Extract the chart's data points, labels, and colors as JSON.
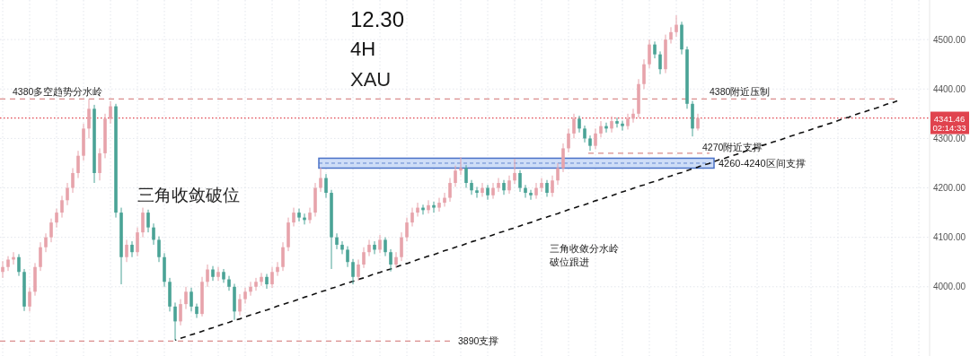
{
  "chart_data": {
    "type": "candlestick",
    "title": "12.30",
    "subtitle": "4H",
    "annotations": [
      "XAU",
      "三角收敛破位",
      "三角收敛分水岭",
      "破位跟进",
      {
        "text": "4380附近压制",
        "y": 4380
      },
      "02:14:33"
    ],
    "ylim": [
      3860,
      4580
    ],
    "yticks": [
      {
        "value": 4000,
        "label": "4000.00"
      },
      {
        "value": 4100,
        "label": "4100.00"
      },
      {
        "value": 4200,
        "label": "4200.00"
      },
      {
        "value": 4300,
        "label": "4300.00"
      },
      {
        "value": 4400,
        "label": "4400.00"
      },
      {
        "value": 4500,
        "label": "4500.00"
      }
    ],
    "tick_labels": "y",
    "grid": true,
    "categories": [
      null,
      null,
      null,
      null,
      null,
      null,
      null,
      null,
      null,
      null,
      null,
      null,
      null,
      null,
      null,
      null,
      null,
      null,
      null,
      null,
      null,
      null,
      null,
      null,
      null,
      null,
      null,
      null,
      null,
      null,
      null,
      null,
      null,
      null,
      null,
      null,
      null,
      null,
      null,
      null,
      null,
      null,
      null,
      null,
      null,
      null,
      null,
      null,
      null,
      null,
      null,
      null,
      null,
      null,
      null,
      null,
      null,
      null,
      null,
      null,
      null,
      null,
      null,
      null,
      null,
      null,
      null,
      null,
      null,
      null,
      null,
      null,
      null,
      null,
      null,
      null,
      null,
      null,
      null,
      null,
      null,
      null,
      null,
      null,
      null,
      null,
      null,
      null,
      null,
      null,
      null,
      null,
      null,
      null,
      null,
      null,
      null,
      null,
      null,
      null,
      null,
      null,
      null,
      null,
      null,
      null,
      null,
      null,
      null,
      null,
      null,
      null,
      null,
      null,
      null,
      null,
      null,
      null,
      null,
      null,
      null,
      null,
      null,
      null,
      null,
      null,
      null,
      null,
      null,
      null,
      null,
      null,
      null,
      null,
      null,
      null,
      null,
      null,
      null,
      null,
      null,
      null,
      null,
      null,
      null,
      null,
      null,
      null,
      null,
      null,
      null,
      null,
      null,
      null,
      null,
      null,
      null,
      null,
      null,
      null,
      null,
      null,
      null,
      null,
      null,
      null,
      null,
      null,
      null,
      null,
      null,
      null
    ],
    "ohlc": [
      [
        4030,
        4052,
        4018,
        4040
      ],
      [
        4040,
        4062,
        4032,
        4055
      ],
      [
        4055,
        4070,
        4045,
        4060
      ],
      [
        4060,
        4066,
        4022,
        4030
      ],
      [
        4030,
        4036,
        3951,
        3960
      ],
      [
        3960,
        3998,
        3950,
        3990
      ],
      [
        3990,
        4048,
        3982,
        4040
      ],
      [
        4040,
        4090,
        4032,
        4080
      ],
      [
        4080,
        4108,
        4070,
        4100
      ],
      [
        4100,
        4138,
        4090,
        4130
      ],
      [
        4130,
        4158,
        4120,
        4150
      ],
      [
        4150,
        4184,
        4140,
        4175
      ],
      [
        4175,
        4210,
        4165,
        4200
      ],
      [
        4200,
        4240,
        4190,
        4230
      ],
      [
        4230,
        4275,
        4220,
        4265
      ],
      [
        4265,
        4330,
        4255,
        4320
      ],
      [
        4320,
        4380,
        4300,
        4360
      ],
      [
        4360,
        4368,
        4210,
        4230
      ],
      [
        4230,
        4280,
        4215,
        4270
      ],
      [
        4270,
        4350,
        4260,
        4340
      ],
      [
        4340,
        4375,
        4330,
        4365
      ],
      [
        4365,
        4370,
        4140,
        4150
      ],
      [
        4150,
        4160,
        4005,
        4060
      ],
      [
        4060,
        4095,
        4050,
        4085
      ],
      [
        4085,
        4092,
        4060,
        4070
      ],
      [
        4070,
        4120,
        4062,
        4110
      ],
      [
        4110,
        4160,
        4100,
        4150
      ],
      [
        4150,
        4156,
        4110,
        4120
      ],
      [
        4120,
        4128,
        4085,
        4095
      ],
      [
        4095,
        4102,
        4050,
        4060
      ],
      [
        4060,
        4068,
        4000,
        4010
      ],
      [
        4010,
        4018,
        3950,
        3960
      ],
      [
        3960,
        3968,
        3892,
        3930
      ],
      [
        3930,
        3975,
        3922,
        3965
      ],
      [
        3965,
        4000,
        3955,
        3990
      ],
      [
        3990,
        3998,
        3950,
        3960
      ],
      [
        3960,
        3966,
        3937,
        3945
      ],
      [
        3945,
        4020,
        3940,
        4010
      ],
      [
        4010,
        4045,
        4000,
        4035
      ],
      [
        4035,
        4042,
        4012,
        4020
      ],
      [
        4020,
        4040,
        4012,
        4030
      ],
      [
        4030,
        4036,
        4008,
        4015
      ],
      [
        4015,
        4022,
        3992,
        4000
      ],
      [
        4000,
        4006,
        3933,
        3950
      ],
      [
        3950,
        3985,
        3942,
        3975
      ],
      [
        3975,
        3998,
        3966,
        3990
      ],
      [
        3990,
        4010,
        3982,
        4000
      ],
      [
        4000,
        4018,
        3992,
        4010
      ],
      [
        4010,
        4028,
        4002,
        4020
      ],
      [
        4020,
        4026,
        3996,
        4005
      ],
      [
        4005,
        4040,
        3998,
        4030
      ],
      [
        4030,
        4050,
        4022,
        4040
      ],
      [
        4040,
        4090,
        4032,
        4080
      ],
      [
        4080,
        4140,
        4072,
        4130
      ],
      [
        4130,
        4160,
        4122,
        4150
      ],
      [
        4150,
        4158,
        4132,
        4140
      ],
      [
        4140,
        4148,
        4126,
        4135
      ],
      [
        4135,
        4160,
        4128,
        4150
      ],
      [
        4150,
        4210,
        4142,
        4200
      ],
      [
        4200,
        4241,
        4192,
        4220
      ],
      [
        4220,
        4228,
        4180,
        4190
      ],
      [
        4190,
        4196,
        4036,
        4100
      ],
      [
        4100,
        4108,
        4076,
        4085
      ],
      [
        4085,
        4092,
        4066,
        4075
      ],
      [
        4075,
        4082,
        4040,
        4050
      ],
      [
        4050,
        4056,
        4005,
        4020
      ],
      [
        4020,
        4055,
        4012,
        4045
      ],
      [
        4045,
        4080,
        4038,
        4070
      ],
      [
        4070,
        4095,
        4062,
        4085
      ],
      [
        4085,
        4092,
        4066,
        4075
      ],
      [
        4075,
        4105,
        4068,
        4095
      ],
      [
        4095,
        4100,
        4062,
        4070
      ],
      [
        4070,
        4076,
        4031,
        4045
      ],
      [
        4045,
        4070,
        4038,
        4060
      ],
      [
        4060,
        4110,
        4052,
        4100
      ],
      [
        4100,
        4140,
        4092,
        4130
      ],
      [
        4130,
        4160,
        4122,
        4150
      ],
      [
        4150,
        4170,
        4142,
        4160
      ],
      [
        4160,
        4166,
        4146,
        4155
      ],
      [
        4155,
        4175,
        4148,
        4165
      ],
      [
        4165,
        4172,
        4150,
        4160
      ],
      [
        4160,
        4180,
        4152,
        4170
      ],
      [
        4170,
        4190,
        4162,
        4180
      ],
      [
        4180,
        4220,
        4172,
        4210
      ],
      [
        4210,
        4245,
        4202,
        4235
      ],
      [
        4235,
        4262,
        4226,
        4240
      ],
      [
        4240,
        4246,
        4200,
        4210
      ],
      [
        4210,
        4216,
        4186,
        4195
      ],
      [
        4195,
        4202,
        4180,
        4190
      ],
      [
        4190,
        4210,
        4182,
        4200
      ],
      [
        4200,
        4206,
        4176,
        4185
      ],
      [
        4185,
        4210,
        4178,
        4200
      ],
      [
        4200,
        4220,
        4192,
        4210
      ],
      [
        4210,
        4216,
        4186,
        4195
      ],
      [
        4195,
        4225,
        4188,
        4215
      ],
      [
        4215,
        4259,
        4208,
        4230
      ],
      [
        4230,
        4236,
        4192,
        4200
      ],
      [
        4200,
        4206,
        4180,
        4190
      ],
      [
        4190,
        4196,
        4176,
        4185
      ],
      [
        4185,
        4210,
        4178,
        4200
      ],
      [
        4200,
        4220,
        4192,
        4210
      ],
      [
        4210,
        4216,
        4182,
        4190
      ],
      [
        4190,
        4225,
        4182,
        4215
      ],
      [
        4215,
        4250,
        4206,
        4240
      ],
      [
        4240,
        4290,
        4232,
        4280
      ],
      [
        4280,
        4320,
        4272,
        4310
      ],
      [
        4310,
        4350,
        4300,
        4340
      ],
      [
        4340,
        4346,
        4312,
        4320
      ],
      [
        4320,
        4326,
        4292,
        4300
      ],
      [
        4300,
        4306,
        4275,
        4285
      ],
      [
        4285,
        4320,
        4278,
        4310
      ],
      [
        4310,
        4335,
        4302,
        4325
      ],
      [
        4325,
        4332,
        4312,
        4320
      ],
      [
        4320,
        4345,
        4312,
        4335
      ],
      [
        4335,
        4342,
        4322,
        4330
      ],
      [
        4330,
        4336,
        4316,
        4325
      ],
      [
        4325,
        4350,
        4318,
        4340
      ],
      [
        4340,
        4360,
        4332,
        4350
      ],
      [
        4350,
        4420,
        4342,
        4410
      ],
      [
        4410,
        4460,
        4400,
        4450
      ],
      [
        4450,
        4500,
        4442,
        4490
      ],
      [
        4490,
        4496,
        4462,
        4470
      ],
      [
        4470,
        4476,
        4430,
        4440
      ],
      [
        4440,
        4510,
        4432,
        4500
      ],
      [
        4500,
        4525,
        4492,
        4515
      ],
      [
        4515,
        4549,
        4506,
        4530
      ],
      [
        4530,
        4536,
        4470,
        4480
      ],
      [
        4480,
        4486,
        4360,
        4370
      ],
      [
        4370,
        4376,
        4304,
        4320
      ],
      [
        4320,
        4350,
        4316,
        4341.46
      ],
      null,
      null,
      null,
      null,
      null,
      null,
      null,
      null,
      null,
      null,
      null,
      null,
      null,
      null,
      null,
      null,
      null,
      null,
      null,
      null,
      null,
      null,
      null,
      null,
      null,
      null,
      null,
      null,
      null,
      null,
      null,
      null,
      null,
      null,
      null,
      null,
      null,
      null,
      null,
      null,
      null,
      null
    ],
    "colors": [
      "#e7a3ab",
      "#e7a3ab",
      "#e7a3ab",
      "#4aa396",
      "#4aa396",
      "#e7a3ab",
      "#e7a3ab",
      "#e7a3ab",
      "#e7a3ab",
      "#e7a3ab",
      "#e7a3ab",
      "#e7a3ab",
      "#e7a3ab",
      "#e7a3ab",
      "#e7a3ab",
      "#e7a3ab",
      "#e7a3ab",
      "#4aa396",
      "#e7a3ab",
      "#e7a3ab",
      "#e7a3ab",
      "#4aa396",
      "#4aa396",
      "#e7a3ab",
      "#4aa396",
      "#e7a3ab",
      "#e7a3ab",
      "#4aa396",
      "#4aa396",
      "#4aa396",
      "#4aa396",
      "#4aa396",
      "#4aa396",
      "#e7a3ab",
      "#e7a3ab",
      "#4aa396",
      "#4aa396",
      "#e7a3ab",
      "#e7a3ab",
      "#4aa396",
      "#e7a3ab",
      "#4aa396",
      "#4aa396",
      "#4aa396",
      "#e7a3ab",
      "#e7a3ab",
      "#e7a3ab",
      "#e7a3ab",
      "#e7a3ab",
      "#4aa396",
      "#e7a3ab",
      "#e7a3ab",
      "#e7a3ab",
      "#e7a3ab",
      "#e7a3ab",
      "#4aa396",
      "#4aa396",
      "#e7a3ab",
      "#e7a3ab",
      "#e7a3ab",
      "#4aa396",
      "#4aa396",
      "#4aa396",
      "#4aa396",
      "#4aa396",
      "#4aa396",
      "#e7a3ab",
      "#e7a3ab",
      "#e7a3ab",
      "#4aa396",
      "#e7a3ab",
      "#4aa396",
      "#4aa396",
      "#e7a3ab",
      "#e7a3ab",
      "#e7a3ab",
      "#e7a3ab",
      "#e7a3ab",
      "#4aa396",
      "#e7a3ab",
      "#4aa396",
      "#e7a3ab",
      "#e7a3ab",
      "#e7a3ab",
      "#e7a3ab",
      "#e7a3ab",
      "#4aa396",
      "#4aa396",
      "#4aa396",
      "#e7a3ab",
      "#4aa396",
      "#e7a3ab",
      "#e7a3ab",
      "#4aa396",
      "#e7a3ab",
      "#e7a3ab",
      "#4aa396",
      "#4aa396",
      "#4aa396",
      "#e7a3ab",
      "#e7a3ab",
      "#4aa396",
      "#e7a3ab",
      "#e7a3ab",
      "#e7a3ab",
      "#e7a3ab",
      "#e7a3ab",
      "#4aa396",
      "#4aa396",
      "#4aa396",
      "#e7a3ab",
      "#e7a3ab",
      "#4aa396",
      "#e7a3ab",
      "#4aa396",
      "#4aa396",
      "#e7a3ab",
      "#e7a3ab",
      "#e7a3ab",
      "#e7a3ab",
      "#e7a3ab",
      "#4aa396",
      "#4aa396",
      "#e7a3ab",
      "#e7a3ab",
      "#e7a3ab",
      "#4aa396",
      "#4aa396",
      "#4aa396",
      "#e7a3ab",
      null,
      null,
      null,
      null,
      null,
      null,
      null,
      null,
      null,
      null,
      null,
      null,
      null,
      null,
      null,
      null,
      null,
      null,
      null,
      null,
      null,
      null,
      null,
      null,
      null,
      null,
      null,
      null,
      null,
      null,
      null,
      null,
      null,
      null,
      null,
      null,
      null,
      null,
      null,
      null,
      null,
      null
    ],
    "series": [
      {
        "type": "line",
        "color": "#111111",
        "line_style": "dashed",
        "values": [
          null,
          null,
          null,
          null,
          null,
          null,
          null,
          null,
          null,
          null,
          null,
          null,
          null,
          null,
          null,
          null,
          null,
          null,
          null,
          null,
          null,
          null,
          null,
          null,
          null,
          null,
          null,
          null,
          null,
          null,
          null,
          null,
          3892,
          3896,
          3899,
          3903,
          3906,
          3910,
          3914,
          3917,
          3921,
          3925,
          3928,
          3932,
          3935,
          3939,
          3943,
          3946,
          3950,
          3953,
          3957,
          3961,
          3964,
          3968,
          3971,
          3975,
          3979,
          3982,
          3986,
          3990,
          3993,
          3997,
          4000,
          4004,
          4008,
          4011,
          4015,
          4018,
          4022,
          4026,
          4029,
          4033,
          4036,
          4040,
          4044,
          4047,
          4051,
          4055,
          4058,
          4062,
          4065,
          4069,
          4073,
          4076,
          4080,
          4083,
          4087,
          4091,
          4094,
          4098,
          4101,
          4105,
          4109,
          4112,
          4116,
          4119,
          4123,
          4127,
          4130,
          4134,
          4138,
          4141,
          4145,
          4148,
          4152,
          4156,
          4159,
          4163,
          4166,
          4170,
          4174,
          4177,
          4181,
          4184,
          4188,
          4192,
          4195,
          4199,
          4203,
          4206,
          4210,
          4213,
          4217,
          4221,
          4224,
          4228,
          4231,
          4235,
          4239,
          4242,
          4246,
          4249,
          4253,
          4257,
          4260,
          4264,
          4267,
          4271,
          4275,
          4278,
          4282,
          4286,
          4289,
          4293,
          4296,
          4300,
          4304,
          4307,
          4311,
          4314,
          4318,
          4322,
          4325,
          4329,
          4332,
          4336,
          4340,
          4343,
          4347,
          4351,
          4354,
          4358,
          4361,
          4365,
          4369,
          4372,
          4376,
          null,
          null,
          null,
          null,
          null
        ]
      }
    ],
    "ref_lines": [
      {
        "axis": "y",
        "value": 4380,
        "label": "4380多空趋势分水岭",
        "color": "#d98c8c",
        "line_style": "dashed"
      },
      {
        "axis": "y",
        "value": 4270,
        "label": "4270附近支撑",
        "color": "#d98c8c",
        "line_style": "dashed"
      },
      {
        "axis": "y",
        "value": 3890,
        "label": "3890支撑",
        "color": "#d98c8c",
        "line_style": "dashed"
      },
      {
        "axis": "y",
        "value": 4341.46,
        "label": "4341.46",
        "color": "#e0434e",
        "line_style": "dotted"
      }
    ],
    "bands": [
      {
        "axis": "y",
        "from": 4240,
        "to": 4260,
        "label": "4260-4240区间支撑",
        "color": "#b9cff3"
      }
    ]
  }
}
